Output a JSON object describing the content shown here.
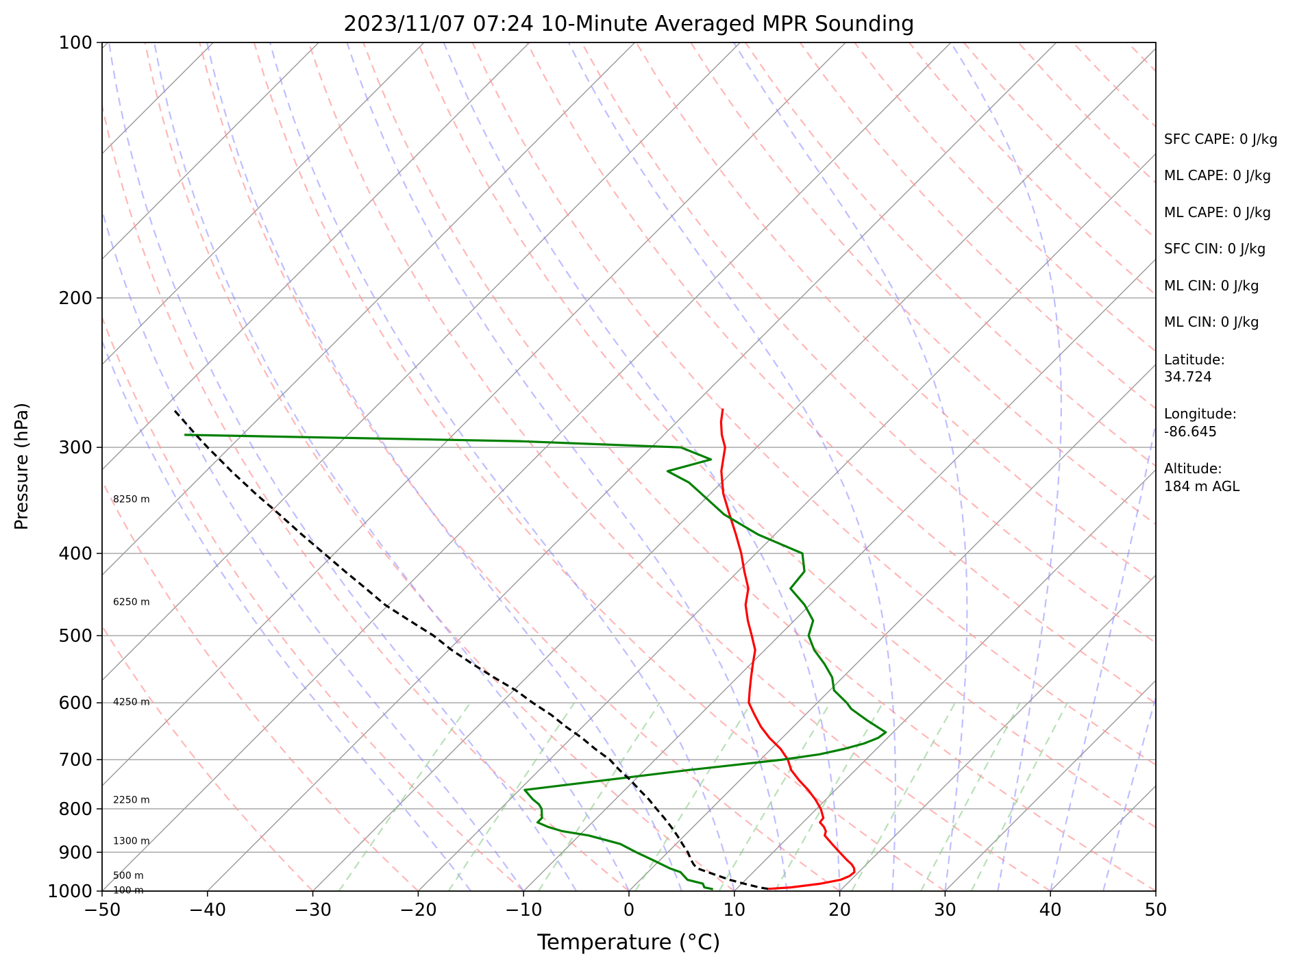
{
  "chart_data": {
    "type": "line",
    "title": "2023/11/07 07:24 10-Minute Averaged MPR Sounding",
    "xlabel": "Temperature (°C)",
    "ylabel": "Pressure (hPa)",
    "xlim": [
      -50,
      50
    ],
    "ylim": [
      1000,
      100
    ],
    "y_scale": "log",
    "skew": 45,
    "x_ticks": [
      "−50",
      "−40",
      "−30",
      "−20",
      "−10",
      "0",
      "10",
      "20",
      "30",
      "40",
      "50"
    ],
    "y_ticks": [
      "100",
      "200",
      "300",
      "400",
      "500",
      "600",
      "700",
      "800",
      "900",
      "1000"
    ],
    "grid": true,
    "height_labels": [
      {
        "text": "8250 m",
        "p": 345
      },
      {
        "text": "6250 m",
        "p": 456
      },
      {
        "text": "4250 m",
        "p": 598
      },
      {
        "text": "2250 m",
        "p": 780
      },
      {
        "text": "1300 m",
        "p": 872
      },
      {
        "text": "500 m",
        "p": 958
      },
      {
        "text": "100 m",
        "p": 997
      }
    ],
    "series": [
      {
        "color": "#ff0000",
        "p": [
          994,
          990,
          980,
          970,
          960,
          950,
          940,
          930,
          920,
          900,
          880,
          860,
          850,
          840,
          830,
          820,
          800,
          780,
          760,
          740,
          720,
          700,
          680,
          660,
          640,
          620,
          600,
          580,
          560,
          540,
          520,
          500,
          480,
          460,
          440,
          420,
          400,
          380,
          360,
          340,
          320,
          300,
          290,
          280,
          270
        ],
        "t": [
          13,
          15,
          17.5,
          19,
          19.5,
          19.6,
          19.2,
          18.6,
          17.8,
          16.3,
          14.8,
          13.3,
          13.0,
          12.4,
          11.6,
          11.5,
          10.4,
          9.0,
          7.4,
          5.6,
          3.9,
          2.6,
          0.9,
          -1.2,
          -3.1,
          -4.8,
          -6.5,
          -7.6,
          -8.7,
          -9.8,
          -10.9,
          -12.6,
          -14.4,
          -16.1,
          -17.4,
          -19.4,
          -21.4,
          -23.7,
          -26.2,
          -28.8,
          -31.1,
          -33.0,
          -34.5,
          -35.8,
          -36.9
        ]
      },
      {
        "color": "#008000",
        "p": [
          995,
          990,
          980,
          970,
          960,
          950,
          940,
          920,
          900,
          880,
          860,
          850,
          840,
          830,
          820,
          800,
          790,
          780,
          760,
          720,
          700,
          690,
          680,
          670,
          660,
          650,
          630,
          610,
          600,
          580,
          560,
          540,
          520,
          500,
          480,
          460,
          440,
          420,
          400,
          380,
          360,
          340,
          330,
          320,
          310,
          300,
          295,
          290
        ],
        "t": [
          7.8,
          6.8,
          6.3,
          4.5,
          3.8,
          3.1,
          1.7,
          -0.6,
          -3.0,
          -5.3,
          -9.1,
          -12.0,
          -13.8,
          -15.2,
          -15.2,
          -16.1,
          -16.8,
          -17.8,
          -19.5,
          -5.8,
          2.1,
          5.1,
          6.9,
          8.3,
          9.1,
          9.3,
          6.5,
          3.8,
          2.8,
          0.4,
          -1.0,
          -3.0,
          -5.3,
          -7.2,
          -8.2,
          -10.5,
          -13.4,
          -13.7,
          -15.6,
          -21.6,
          -26.7,
          -30.9,
          -33.1,
          -36.2,
          -33.2,
          -37.2,
          -53.2,
          -85.5
        ]
      },
      {
        "color": "#000000",
        "dashed": true,
        "p": [
          994,
          990,
          980,
          970,
          960,
          950,
          940,
          930,
          920,
          900,
          880,
          860,
          840,
          820,
          800,
          780,
          760,
          740,
          720,
          700,
          680,
          660,
          640,
          620,
          600,
          580,
          560,
          540,
          520,
          500,
          480,
          460,
          440,
          420,
          400,
          380,
          360,
          340,
          320,
          300,
          290,
          280,
          270
        ],
        "t": [
          13,
          12.0,
          10.2,
          8.5,
          7.1,
          5.7,
          4.3,
          3.6,
          3.0,
          1.9,
          0.6,
          -0.7,
          -2.1,
          -3.6,
          -5.2,
          -6.8,
          -8.6,
          -10.4,
          -12.4,
          -14.3,
          -16.7,
          -19.0,
          -21.6,
          -24.1,
          -27.0,
          -29.8,
          -33.1,
          -36.4,
          -39.7,
          -42.8,
          -46.5,
          -50.3,
          -53.7,
          -57.3,
          -61.0,
          -64.9,
          -68.9,
          -73.2,
          -77.6,
          -82.1,
          -84.4,
          -86.7,
          -89.1
        ]
      }
    ]
  },
  "stats": [
    "SFC CAPE: 0 J/kg",
    "ML CAPE: 0 J/kg",
    "ML CAPE: 0 J/kg",
    "SFC CIN: 0 J/kg",
    "ML CIN: 0 J/kg",
    "ML CIN: 0 J/kg"
  ],
  "location": {
    "latitude_label": "Latitude:",
    "latitude_value": "34.724",
    "longitude_label": "Longitude:",
    "longitude_value": "-86.645",
    "altitude_label": "Altitude:",
    "altitude_value": "184 m AGL"
  },
  "colors": {
    "temperature": "#ff0000",
    "dewpoint": "#008000",
    "parcel": "#000000",
    "dry_adiabats": "#ff9999",
    "moist_adiabats": "#8888ff",
    "mixing_ratio": "#88cc88",
    "isotherms": "#999999"
  }
}
